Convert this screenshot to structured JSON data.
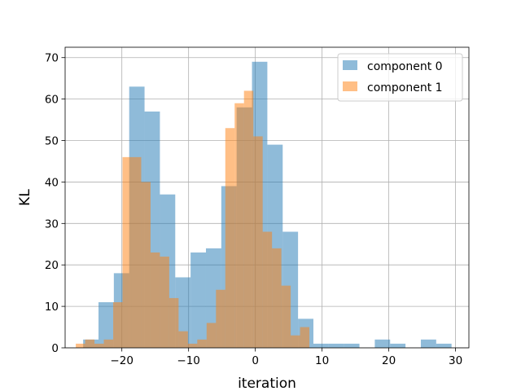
{
  "chart_data": {
    "type": "bar",
    "xlabel": "iteration",
    "ylabel": "KL",
    "xlim": [
      -28.5,
      32
    ],
    "ylim": [
      0,
      72.5
    ],
    "xticks": [
      -20,
      -10,
      0,
      10,
      20,
      30
    ],
    "xtick_labels": [
      "−20",
      "−10",
      "0",
      "10",
      "20",
      "30"
    ],
    "yticks": [
      0,
      10,
      20,
      30,
      40,
      50,
      60,
      70
    ],
    "ytick_labels": [
      "0",
      "10",
      "20",
      "30",
      "40",
      "50",
      "60",
      "70"
    ],
    "grid": true,
    "legend": "top-right",
    "series": [
      {
        "name": "component 0",
        "color": "#1f77b4",
        "alpha": 0.5,
        "bin_width": 2.3,
        "bins": [
          [
            -25.8,
            2
          ],
          [
            -23.5,
            11
          ],
          [
            -21.2,
            18
          ],
          [
            -18.9,
            63
          ],
          [
            -16.6,
            57
          ],
          [
            -14.3,
            37
          ],
          [
            -12.0,
            17
          ],
          [
            -9.7,
            23
          ],
          [
            -7.4,
            24
          ],
          [
            -5.1,
            39
          ],
          [
            -2.8,
            58
          ],
          [
            -0.5,
            69
          ],
          [
            1.8,
            49
          ],
          [
            4.1,
            28
          ],
          [
            6.4,
            7
          ],
          [
            8.7,
            1
          ],
          [
            11.0,
            1
          ],
          [
            13.3,
            1
          ],
          [
            15.6,
            0
          ],
          [
            17.9,
            2
          ],
          [
            20.2,
            1
          ],
          [
            22.5,
            0
          ],
          [
            24.8,
            2
          ],
          [
            27.1,
            1
          ]
        ]
      },
      {
        "name": "component 1",
        "color": "#ff7f0e",
        "alpha": 0.5,
        "bin_width": 1.4,
        "bins": [
          [
            -26.9,
            1
          ],
          [
            -25.5,
            2
          ],
          [
            -24.1,
            1
          ],
          [
            -22.7,
            2
          ],
          [
            -21.3,
            11
          ],
          [
            -19.9,
            46
          ],
          [
            -18.5,
            46
          ],
          [
            -17.1,
            40
          ],
          [
            -15.7,
            23
          ],
          [
            -14.3,
            22
          ],
          [
            -12.9,
            12
          ],
          [
            -11.5,
            4
          ],
          [
            -10.1,
            1
          ],
          [
            -8.7,
            2
          ],
          [
            -7.3,
            6
          ],
          [
            -5.9,
            14
          ],
          [
            -4.5,
            53
          ],
          [
            -3.1,
            59
          ],
          [
            -1.7,
            62
          ],
          [
            -0.3,
            51
          ],
          [
            1.1,
            28
          ],
          [
            2.5,
            24
          ],
          [
            3.9,
            15
          ],
          [
            5.3,
            3
          ],
          [
            6.7,
            5
          ]
        ]
      }
    ]
  }
}
